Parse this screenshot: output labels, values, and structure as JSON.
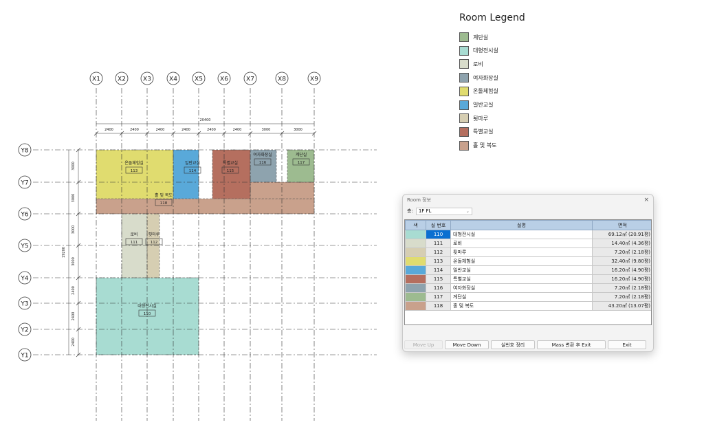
{
  "plan": {
    "x_grid": [
      "X1",
      "X2",
      "X3",
      "X4",
      "X5",
      "X6",
      "X7",
      "X8",
      "X9"
    ],
    "y_grid": [
      "Y8",
      "Y7",
      "Y6",
      "Y5",
      "Y4",
      "Y3",
      "Y2",
      "Y1"
    ],
    "total_width": "20400",
    "spans_x": [
      "2400",
      "2400",
      "2400",
      "2400",
      "2400",
      "2400",
      "3000",
      "3000"
    ],
    "total_height": "19200",
    "spans_y": [
      "3000",
      "3000",
      "3000",
      "3000",
      "2400",
      "2400",
      "2400"
    ],
    "rooms": [
      {
        "name": "온돌체험실",
        "number": "113",
        "color": "#e0dc6f"
      },
      {
        "name": "일반교실",
        "number": "114",
        "color": "#59a9d9"
      },
      {
        "name": "특별교실",
        "number": "115",
        "color": "#b56f5f"
      },
      {
        "name": "여자화장실",
        "number": "116",
        "color": "#8ea3ae"
      },
      {
        "name": "계단실",
        "number": "117",
        "color": "#9dbb90"
      },
      {
        "name": "홀 및 복도",
        "number": "118",
        "color": "#c9a18c"
      },
      {
        "name": "로비",
        "number": "111",
        "color": "#d8dccb"
      },
      {
        "name": "툇마루",
        "number": "112",
        "color": "#d6ceb2"
      },
      {
        "name": "대형전시실",
        "number": "110",
        "color": "#a8dcd2"
      }
    ]
  },
  "legend": {
    "title": "Room Legend",
    "items": [
      {
        "label": "계단실",
        "color": "#9dbb90"
      },
      {
        "label": "대형전시실",
        "color": "#a8dcd2"
      },
      {
        "label": "로비",
        "color": "#d8dccb"
      },
      {
        "label": "여자화장실",
        "color": "#8ea3ae"
      },
      {
        "label": "온돌체험실",
        "color": "#e0dc6f"
      },
      {
        "label": "일반교실",
        "color": "#59a9d9"
      },
      {
        "label": "툇마루",
        "color": "#d6ceb2"
      },
      {
        "label": "특별교실",
        "color": "#b56f5f"
      },
      {
        "label": "홀 및 복도",
        "color": "#c9a18c"
      }
    ]
  },
  "dialog": {
    "title": "Room 정보",
    "close": "×",
    "floor_label": "층:",
    "floor_value": "1F FL",
    "columns": {
      "color": "색",
      "number": "실 번호",
      "name": "실명",
      "area": "면적"
    },
    "rows": [
      {
        "number": "110",
        "name": "대형전시실",
        "area": "69.12㎡ (20.91평)",
        "color": "#a8dcd2",
        "selected": true
      },
      {
        "number": "111",
        "name": "로비",
        "area": "14.40㎡ (4.36평)",
        "color": "#d8dccb"
      },
      {
        "number": "112",
        "name": "툇마루",
        "area": "7.20㎡ (2.18평)",
        "color": "#d6ceb2"
      },
      {
        "number": "113",
        "name": "온돌체험실",
        "area": "32.40㎡ (9.80평)",
        "color": "#e0dc6f"
      },
      {
        "number": "114",
        "name": "일반교실",
        "area": "16.20㎡ (4.90평)",
        "color": "#59a9d9"
      },
      {
        "number": "115",
        "name": "특별교실",
        "area": "16.20㎡ (4.90평)",
        "color": "#b56f5f"
      },
      {
        "number": "116",
        "name": "여자화장실",
        "area": "7.20㎡ (2.18평)",
        "color": "#8ea3ae"
      },
      {
        "number": "117",
        "name": "계단실",
        "area": "7.20㎡ (2.18평)",
        "color": "#9dbb90"
      },
      {
        "number": "118",
        "name": "홀 및 복도",
        "area": "43.20㎡ (13.07평)",
        "color": "#c9a18c"
      }
    ],
    "buttons": {
      "move_up": "Move Up",
      "move_down": "Move Down",
      "renumber": "실번호 정리",
      "mass_exit": "Mass 변환 후 Exit",
      "exit": "Exit"
    }
  }
}
